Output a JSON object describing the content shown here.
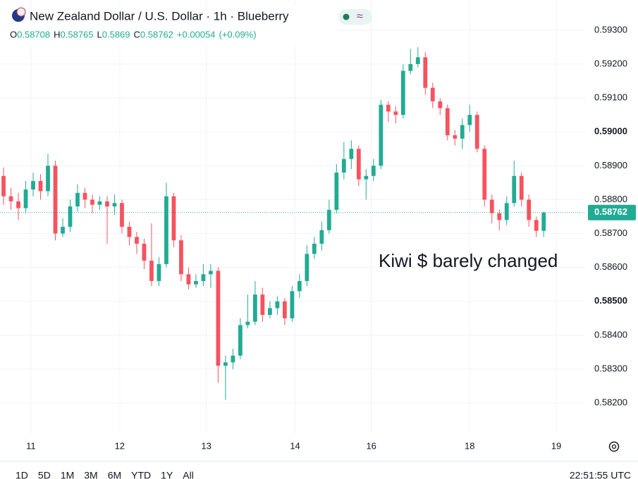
{
  "chart_data": {
    "type": "candlestick",
    "title": "New Zealand Dollar / U.S. Dollar · 1h · Blueberry",
    "legend": {
      "o": "O",
      "h": "H",
      "l": "L",
      "c": "C",
      "change": "+0.00054",
      "change_pct": "(+0.09%)"
    },
    "annotation": "Kiwi $ barely changed",
    "timeframes": [
      "1D",
      "5D",
      "1M",
      "3M",
      "6M",
      "YTD",
      "1Y",
      "All"
    ],
    "clock": "22:51:55 UTC",
    "up_color": "#22ab94",
    "down_color": "#f7525f",
    "annotation_color": "#e02020",
    "grid": true,
    "xlim": [
      -0.48,
      78.6
    ],
    "xticks": [
      {
        "value": 3.7,
        "label": "11"
      },
      {
        "value": 15.7,
        "label": "12"
      },
      {
        "value": 27.4,
        "label": "13"
      },
      {
        "value": 39.4,
        "label": "14"
      },
      {
        "value": 49.7,
        "label": "16"
      },
      {
        "value": 63,
        "label": "18"
      },
      {
        "value": 74.7,
        "label": "19"
      }
    ],
    "ylim": [
      0.58111,
      0.59389
    ],
    "yticks": [
      {
        "value": 0.582,
        "label": "0.58200"
      },
      {
        "value": 0.583,
        "label": "0.58300"
      },
      {
        "value": 0.584,
        "label": "0.58400"
      },
      {
        "value": 0.585,
        "label": "0.58500"
      },
      {
        "value": 0.586,
        "label": "0.58600"
      },
      {
        "value": 0.587,
        "label": "0.58700"
      },
      {
        "value": 0.588,
        "label": "0.58800"
      },
      {
        "value": 0.589,
        "label": "0.58900"
      },
      {
        "value": 0.59,
        "label": "0.59000"
      },
      {
        "value": 0.591,
        "label": "0.59100"
      },
      {
        "value": 0.592,
        "label": "0.59200"
      },
      {
        "value": 0.593,
        "label": "0.59300"
      }
    ],
    "open": [
      0.5887,
      0.5881,
      0.58795,
      0.58775,
      0.5883,
      0.58855,
      0.58825,
      0.589,
      0.587,
      0.5872,
      0.5878,
      0.5882,
      0.588,
      0.58785,
      0.58795,
      0.5878,
      0.5879,
      0.5872,
      0.5869,
      0.5867,
      0.5862,
      0.5856,
      0.5861,
      0.5881,
      0.5868,
      0.5858,
      0.5855,
      0.5856,
      0.5858,
      0.5859,
      0.5831,
      0.5832,
      0.5834,
      0.5843,
      0.5844,
      0.5852,
      0.5846,
      0.5848,
      0.585,
      0.5845,
      0.5853,
      0.5856,
      0.5864,
      0.5867,
      0.5871,
      0.5877,
      0.5888,
      0.5892,
      0.5895,
      0.5886,
      0.5887,
      0.589,
      0.5908,
      0.5906,
      0.5905,
      0.5918,
      0.592,
      0.5922,
      0.5913,
      0.5909,
      0.5907,
      0.5899,
      0.5898,
      0.5902,
      0.5905,
      0.5895,
      0.588,
      0.5876,
      0.5874,
      0.5879,
      0.5887,
      0.588,
      0.5874,
      0.58708
    ],
    "high": [
      0.58895,
      0.58835,
      0.5882,
      0.58855,
      0.5888,
      0.58875,
      0.58935,
      0.58915,
      0.58745,
      0.588,
      0.58845,
      0.58835,
      0.58815,
      0.5881,
      0.5881,
      0.58815,
      0.588,
      0.58735,
      0.58705,
      0.58685,
      0.5873,
      0.5863,
      0.5885,
      0.5882,
      0.58695,
      0.586,
      0.5858,
      0.5861,
      0.5861,
      0.586,
      0.5834,
      0.5836,
      0.5845,
      0.5852,
      0.5856,
      0.5854,
      0.585,
      0.58515,
      0.5851,
      0.58545,
      0.5858,
      0.58665,
      0.5869,
      0.58735,
      0.588,
      0.58905,
      0.5897,
      0.58975,
      0.5896,
      0.5889,
      0.5892,
      0.59095,
      0.5909,
      0.59075,
      0.592,
      0.59245,
      0.5925,
      0.59235,
      0.59145,
      0.591,
      0.5908,
      0.59005,
      0.5904,
      0.5908,
      0.5906,
      0.5896,
      0.58815,
      0.5877,
      0.5881,
      0.58915,
      0.5888,
      0.58815,
      0.5875,
      0.58765
    ],
    "low": [
      0.58785,
      0.5877,
      0.5874,
      0.5876,
      0.5881,
      0.588,
      0.5881,
      0.5868,
      0.5869,
      0.58705,
      0.58765,
      0.58775,
      0.5876,
      0.5877,
      0.5867,
      0.58755,
      0.587,
      0.58665,
      0.5864,
      0.58595,
      0.58545,
      0.58545,
      0.586,
      0.5866,
      0.5856,
      0.58535,
      0.5854,
      0.58545,
      0.5854,
      0.5826,
      0.5821,
      0.583,
      0.5833,
      0.5842,
      0.5843,
      0.5844,
      0.5845,
      0.5846,
      0.5843,
      0.5844,
      0.5851,
      0.58545,
      0.58625,
      0.5865,
      0.587,
      0.5876,
      0.5886,
      0.5889,
      0.5884,
      0.588,
      0.58855,
      0.5889,
      0.5903,
      0.59025,
      0.5904,
      0.5917,
      0.5919,
      0.5911,
      0.5907,
      0.5905,
      0.58975,
      0.5896,
      0.5895,
      0.59,
      0.5894,
      0.5878,
      0.5873,
      0.5871,
      0.58725,
      0.5878,
      0.5878,
      0.5872,
      0.5869,
      0.5869
    ],
    "close": [
      0.5881,
      0.58795,
      0.58775,
      0.5883,
      0.58855,
      0.58825,
      0.589,
      0.587,
      0.5872,
      0.5878,
      0.5882,
      0.588,
      0.58785,
      0.58795,
      0.5878,
      0.5879,
      0.5872,
      0.5869,
      0.5867,
      0.5862,
      0.5856,
      0.5861,
      0.5881,
      0.5868,
      0.5858,
      0.5855,
      0.5856,
      0.5858,
      0.5859,
      0.5831,
      0.5832,
      0.5834,
      0.5843,
      0.5844,
      0.5852,
      0.5846,
      0.5848,
      0.585,
      0.5845,
      0.5853,
      0.5856,
      0.5864,
      0.5867,
      0.5871,
      0.5877,
      0.5888,
      0.5892,
      0.5895,
      0.5886,
      0.5887,
      0.589,
      0.5908,
      0.5906,
      0.5905,
      0.5918,
      0.592,
      0.5922,
      0.5913,
      0.5909,
      0.5907,
      0.5899,
      0.5898,
      0.5902,
      0.5905,
      0.5895,
      0.588,
      0.5876,
      0.5874,
      0.5879,
      0.5887,
      0.588,
      0.5874,
      0.58708,
      0.58762
    ]
  }
}
